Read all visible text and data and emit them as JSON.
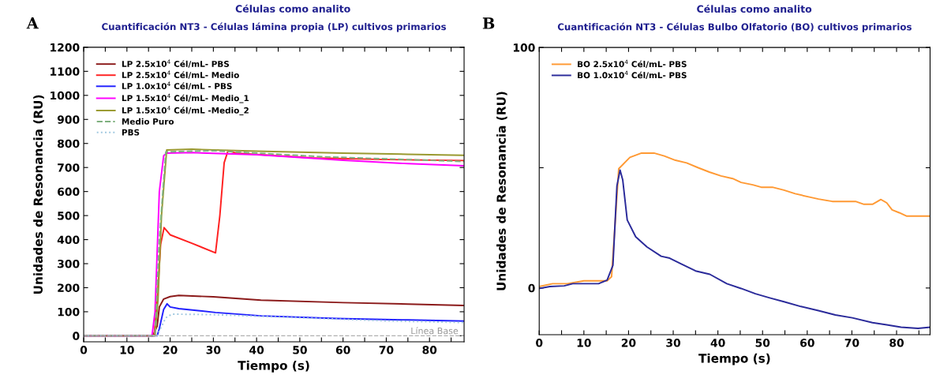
{
  "chart_data": [
    {
      "type": "line",
      "title": "Células como analito",
      "subtitle": "Cuantificación NT3 - Células lámina propia (LP) cultivos primarios",
      "xlabel": "Tiempo (s)",
      "ylabel": "Unidades de Resonancia (RU)",
      "annotations": [
        "A"
      ],
      "xlim": [
        0,
        88
      ],
      "ylim": [
        -25,
        1200
      ],
      "xticks": [
        0,
        {
          "value": 5,
          "label": null
        },
        10,
        {
          "value": 15,
          "label": null
        },
        20,
        {
          "value": 25,
          "label": null
        },
        30,
        {
          "value": 35,
          "label": null
        },
        40,
        {
          "value": 45,
          "label": null
        },
        50,
        {
          "value": 55,
          "label": null
        },
        60,
        {
          "value": 65,
          "label": null
        },
        70,
        {
          "value": 75,
          "label": null
        },
        80,
        {
          "value": 85,
          "label": null
        }
      ],
      "yticks": [
        0,
        100,
        200,
        300,
        400,
        500,
        600,
        700,
        800,
        900,
        1000,
        1100,
        1200
      ],
      "grid": false,
      "legend": "top left",
      "ref_lines": [
        {
          "axis": "y",
          "value": 0,
          "label": "Línea Base",
          "color": "#b0b0b0",
          "line_style": "dashed"
        }
      ],
      "series": [
        {
          "name": "LP 2.5x10$^{4}$ Cél/mL- PBS",
          "color": "#8b1a1a",
          "line_style": "solid",
          "x": [
            0,
            16,
            17,
            17.5,
            18.5,
            20,
            22,
            30,
            41,
            60,
            75,
            88
          ],
          "values": [
            0,
            0,
            40,
            120,
            153,
            163,
            168,
            162,
            148,
            138,
            132,
            126
          ]
        },
        {
          "name": "LP 2.5x10$^{4}$ Cél/mL- Medio",
          "color": "#ff2020",
          "line_style": "solid",
          "x": [
            0,
            16.3,
            17,
            17.8,
            18.6,
            20,
            25,
            30.5,
            31.5,
            32.5,
            33.4,
            35.2,
            52.8,
            70,
            88
          ],
          "values": [
            0,
            0,
            150,
            380,
            450,
            420,
            385,
            345,
            500,
            720,
            770,
            760,
            740,
            733,
            729
          ]
        },
        {
          "name": "LP 1.0x10$^{4}$ Cél/mL - PBS",
          "color": "#2020ff",
          "line_style": "solid",
          "x": [
            0,
            17,
            17.5,
            18.5,
            19.3,
            20,
            22,
            30.5,
            41,
            58.5,
            75,
            88
          ],
          "values": [
            0,
            0,
            30,
            110,
            133,
            120,
            113,
            97,
            83,
            72,
            66,
            61
          ]
        },
        {
          "name": "LP 1.5x10$^{4}$ Cél/mL- Medio_1",
          "color": "#ff00ff",
          "line_style": "solid",
          "x": [
            0,
            15.8,
            16.5,
            17.5,
            18.5,
            19.2,
            25,
            40,
            60,
            75,
            88
          ],
          "values": [
            0,
            0,
            100,
            600,
            749,
            760,
            762,
            753,
            730,
            716,
            707
          ]
        },
        {
          "name": "LP 1.5x10$^{4}$ Cél/mL -Medio_2",
          "color": "#9a9a30",
          "line_style": "solid",
          "x": [
            0,
            16.5,
            17.2,
            18,
            19.2,
            25,
            40,
            60,
            75,
            88
          ],
          "values": [
            0,
            0,
            150,
            500,
            773,
            776,
            768,
            760,
            755,
            751
          ]
        },
        {
          "name": "Medio Puro",
          "color": "#7fb07f",
          "line_style": "dashed",
          "x": [
            0,
            16.5,
            17.5,
            19,
            30,
            55,
            88
          ],
          "values": [
            0,
            0,
            400,
            765,
            770,
            745,
            725
          ]
        },
        {
          "name": "PBS",
          "color": "#a0c8e0",
          "line_style": "dotted",
          "x": [
            0,
            17,
            17.5,
            19,
            20.4,
            30,
            50,
            70,
            88
          ],
          "values": [
            0,
            0,
            20,
            75,
            90,
            88,
            75,
            62,
            55
          ]
        }
      ]
    },
    {
      "type": "line",
      "title": "Células como analito",
      "subtitle": "Cuantificación NT3 - Células Bulbo Olfatorio (BO) cultivos primarios",
      "xlabel": "Tiempo (s)",
      "ylabel": "Unidades de Resonancia (RU)",
      "annotations": [
        "B"
      ],
      "xlim": [
        0,
        87.5
      ],
      "ylim": [
        -19.4,
        100
      ],
      "xticks": [
        0,
        {
          "value": 5,
          "label": null
        },
        10,
        {
          "value": 15,
          "label": null
        },
        20,
        {
          "value": 25,
          "label": null
        },
        30,
        {
          "value": 35,
          "label": null
        },
        40,
        {
          "value": 45,
          "label": null
        },
        50,
        {
          "value": 55,
          "label": null
        },
        60,
        {
          "value": 65,
          "label": null
        },
        70,
        {
          "value": 75,
          "label": null
        },
        80,
        {
          "value": 85,
          "label": null
        }
      ],
      "yticks": [
        0,
        {
          "value": 50,
          "label": null
        },
        100
      ],
      "grid": false,
      "legend": "top left",
      "series": [
        {
          "name": "BO 2.5x10$^{4}$ Cél/mL- PBS",
          "color": "#ff9933",
          "line_style": "solid",
          "x": [
            0,
            3,
            6.3,
            10,
            15.2,
            16.2,
            17.8,
            20.3,
            22.9,
            25.7,
            28,
            30.5,
            33,
            35.6,
            38.1,
            40.7,
            43.3,
            45.2,
            47.8,
            49.7,
            52.2,
            54.8,
            57.3,
            60.5,
            62.5,
            65.6,
            70.8,
            72.7,
            74.6,
            76.5,
            77.8,
            79,
            80.6,
            82.2,
            87.4
          ],
          "values": [
            0.6,
            1.8,
            1.8,
            3,
            3,
            4.7,
            49.6,
            54.3,
            56.1,
            56.1,
            54.9,
            53.1,
            52,
            50,
            48.2,
            46.6,
            45.5,
            43.9,
            42.9,
            41.9,
            41.9,
            40.7,
            39.2,
            37.8,
            37,
            36,
            36,
            34.8,
            34.8,
            36.8,
            35.4,
            32.5,
            31.3,
            29.9,
            29.9
          ]
        },
        {
          "name": "BO 1.0x10$^{4}$ Cél/mL- PBS",
          "color": "#2a2a9a",
          "line_style": "solid",
          "x": [
            0,
            2.4,
            5.6,
            7.5,
            13.3,
            15.2,
            16.5,
            17.4,
            18.1,
            18.7,
            19.7,
            21.6,
            24.1,
            27.3,
            29.2,
            31.8,
            35,
            38.2,
            42,
            45.2,
            48.4,
            51.6,
            54.8,
            58.6,
            62.5,
            66.3,
            70.1,
            74.6,
            77.8,
            81,
            84.8,
            87.4
          ],
          "values": [
            -0.2,
            0.6,
            0.9,
            1.8,
            1.8,
            3.3,
            9.4,
            42.5,
            49,
            44.9,
            28.3,
            21.3,
            17.1,
            13.2,
            12.4,
            10,
            7.1,
            5.7,
            1.8,
            -0.2,
            -2.4,
            -4.1,
            -5.7,
            -7.7,
            -9.4,
            -11.2,
            -12.4,
            -14.4,
            -15.3,
            -16.3,
            -16.8,
            -16.3
          ]
        }
      ]
    }
  ]
}
